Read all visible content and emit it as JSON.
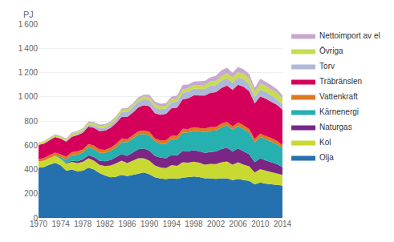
{
  "chart_data": {
    "type": "area",
    "stacked": true,
    "ylabel": "PJ",
    "x": [
      1970,
      1971,
      1972,
      1973,
      1974,
      1975,
      1976,
      1977,
      1978,
      1979,
      1980,
      1981,
      1982,
      1983,
      1984,
      1985,
      1986,
      1987,
      1988,
      1989,
      1990,
      1991,
      1992,
      1993,
      1994,
      1995,
      1996,
      1997,
      1998,
      1999,
      2000,
      2001,
      2002,
      2003,
      2004,
      2005,
      2006,
      2007,
      2008,
      2009,
      2010,
      2011,
      2012,
      2013,
      2014
    ],
    "series": [
      {
        "name": "Olja",
        "color": "#2571b0",
        "values": [
          415,
          420,
          440,
          455,
          435,
          390,
          400,
          385,
          390,
          415,
          400,
          370,
          350,
          335,
          340,
          355,
          345,
          355,
          365,
          375,
          360,
          335,
          325,
          320,
          328,
          322,
          332,
          338,
          342,
          338,
          328,
          328,
          322,
          328,
          328,
          312,
          322,
          312,
          305,
          278,
          292,
          282,
          278,
          272,
          268
        ]
      },
      {
        "name": "Kol",
        "color": "#c8d932",
        "values": [
          50,
          52,
          55,
          58,
          52,
          58,
          62,
          68,
          72,
          78,
          72,
          68,
          78,
          98,
          112,
          118,
          108,
          118,
          128,
          118,
          112,
          98,
          92,
          92,
          108,
          108,
          128,
          118,
          122,
          118,
          112,
          118,
          122,
          132,
          138,
          128,
          138,
          128,
          122,
          98,
          112,
          108,
          102,
          98,
          88
        ]
      },
      {
        "name": "Naturgas",
        "color": "#7b2585",
        "values": [
          0,
          0,
          0,
          0,
          0,
          5,
          10,
          15,
          20,
          25,
          30,
          35,
          40,
          45,
          50,
          55,
          60,
          68,
          74,
          80,
          84,
          80,
          80,
          80,
          84,
          84,
          94,
          94,
          94,
          94,
          98,
          98,
          104,
          108,
          114,
          108,
          114,
          108,
          98,
          84,
          88,
          84,
          80,
          74,
          64
        ]
      },
      {
        "name": "Kärnenergi",
        "color": "#27b0b0",
        "values": [
          0,
          0,
          0,
          0,
          15,
          30,
          45,
          55,
          60,
          65,
          65,
          65,
          70,
          75,
          80,
          100,
          110,
          115,
          120,
          120,
          125,
          120,
          115,
          120,
          130,
          135,
          150,
          155,
          160,
          165,
          170,
          175,
          175,
          180,
          185,
          180,
          185,
          185,
          180,
          165,
          175,
          175,
          170,
          165,
          158
        ]
      },
      {
        "name": "Vattenkraft",
        "color": "#e0781e",
        "values": [
          20,
          22,
          24,
          26,
          24,
          23,
          25,
          27,
          24,
          27,
          29,
          27,
          24,
          27,
          29,
          29,
          27,
          25,
          27,
          29,
          29,
          24,
          27,
          29,
          27,
          29,
          31,
          29,
          31,
          27,
          29,
          31,
          27,
          31,
          29,
          27,
          29,
          31,
          29,
          27,
          29,
          27,
          29,
          27,
          24
        ]
      },
      {
        "name": "Träbränslen",
        "color": "#d4005a",
        "values": [
          118,
          120,
          123,
          128,
          128,
          123,
          128,
          133,
          138,
          143,
          148,
          153,
          158,
          163,
          173,
          178,
          183,
          188,
          198,
          208,
          213,
          208,
          213,
          218,
          228,
          233,
          243,
          253,
          263,
          268,
          273,
          283,
          288,
          293,
          298,
          303,
          312,
          318,
          312,
          293,
          307,
          307,
          302,
          298,
          292
        ]
      },
      {
        "name": "Torv",
        "color": "#b0b8d8",
        "values": [
          5,
          5,
          5,
          5,
          5,
          8,
          10,
          12,
          15,
          18,
          20,
          22,
          25,
          28,
          32,
          38,
          42,
          45,
          48,
          50,
          50,
          48,
          45,
          45,
          50,
          50,
          55,
          55,
          55,
          55,
          55,
          58,
          58,
          60,
          62,
          60,
          62,
          62,
          60,
          52,
          58,
          56,
          52,
          48,
          42
        ]
      },
      {
        "name": "Övriga",
        "color": "#c8dc50",
        "values": [
          12,
          12,
          13,
          14,
          14,
          14,
          15,
          15,
          16,
          17,
          17,
          17,
          18,
          18,
          19,
          20,
          20,
          20,
          22,
          22,
          24,
          24,
          24,
          24,
          26,
          26,
          28,
          28,
          30,
          30,
          32,
          34,
          36,
          38,
          40,
          40,
          42,
          44,
          46,
          44,
          48,
          48,
          50,
          52,
          52
        ]
      },
      {
        "name": "Nettoimport av el",
        "color": "#c8a8d0",
        "values": [
          2,
          3,
          4,
          5,
          4,
          6,
          9,
          7,
          6,
          9,
          11,
          13,
          11,
          9,
          6,
          9,
          13,
          11,
          13,
          15,
          19,
          23,
          21,
          19,
          21,
          23,
          36,
          31,
          29,
          31,
          33,
          36,
          41,
          49,
          46,
          41,
          43,
          39,
          36,
          31,
          39,
          36,
          33,
          29,
          23
        ]
      }
    ],
    "xlim": [
      1970,
      2014
    ],
    "xticks": [
      1970,
      1974,
      1978,
      1982,
      1986,
      1990,
      1994,
      1998,
      2002,
      2006,
      2010,
      2014
    ],
    "ylim": [
      0,
      1600
    ],
    "yticks": [
      0,
      200,
      400,
      600,
      800,
      {
        "value": 1000,
        "label": "1 000"
      },
      {
        "value": 1200,
        "label": "1 200"
      },
      {
        "value": 1400,
        "label": "1 400"
      },
      {
        "value": 1600,
        "label": "1 600"
      }
    ],
    "grid": "y",
    "legend": "right"
  }
}
